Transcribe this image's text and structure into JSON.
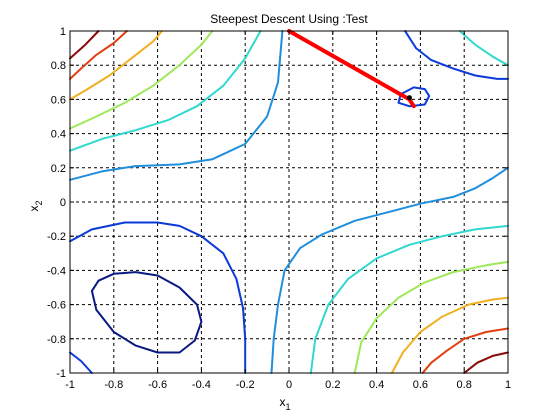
{
  "chart_data": {
    "type": "line",
    "title": "Steepest Descent Using :Test",
    "xlabel": "x",
    "xlabel_sub": "1",
    "ylabel": "x",
    "ylabel_sub": "2",
    "xlim": [
      -1,
      1
    ],
    "ylim": [
      -1,
      1
    ],
    "grid": true,
    "grid_style": "dashed",
    "x_ticks": [
      -1,
      -0.8,
      -0.6,
      -0.4,
      -0.2,
      0,
      0.2,
      0.4,
      0.6,
      0.8,
      1
    ],
    "x_tick_labels": [
      "-1",
      "-0.8",
      "-0.6",
      "-0.4",
      "-0.2",
      "0",
      "0.2",
      "0.4",
      "0.6",
      "0.8",
      "1"
    ],
    "y_ticks": [
      -1,
      -0.8,
      -0.6,
      -0.4,
      -0.2,
      0,
      0.2,
      0.4,
      0.6,
      0.8,
      1
    ],
    "y_tick_labels": [
      "-1",
      "-0.8",
      "-0.6",
      "-0.4",
      "-0.2",
      "0",
      "0.2",
      "0.4",
      "0.6",
      "0.8",
      "1"
    ],
    "contours": [
      {
        "color": "#0a1a80",
        "points": [
          [
            -0.9,
            -0.52
          ],
          [
            -0.88,
            -0.63
          ],
          [
            -0.8,
            -0.76
          ],
          [
            -0.7,
            -0.84
          ],
          [
            -0.6,
            -0.88
          ],
          [
            -0.5,
            -0.88
          ],
          [
            -0.43,
            -0.81
          ],
          [
            -0.4,
            -0.7
          ],
          [
            -0.42,
            -0.6
          ],
          [
            -0.5,
            -0.5
          ],
          [
            -0.6,
            -0.43
          ],
          [
            -0.7,
            -0.41
          ],
          [
            -0.8,
            -0.42
          ],
          [
            -0.87,
            -0.46
          ],
          [
            -0.9,
            -0.52
          ]
        ]
      },
      {
        "color": "#0a3ad8",
        "points": [
          [
            -1,
            -0.88
          ],
          [
            -0.95,
            -0.93
          ],
          [
            -0.9,
            -1
          ]
        ]
      },
      {
        "color": "#0a3ad8",
        "points": [
          [
            -1,
            -0.23
          ],
          [
            -0.9,
            -0.16
          ],
          [
            -0.75,
            -0.12
          ],
          [
            -0.6,
            -0.12
          ],
          [
            -0.5,
            -0.14
          ],
          [
            -0.4,
            -0.2
          ],
          [
            -0.3,
            -0.3
          ],
          [
            -0.24,
            -0.45
          ],
          [
            -0.21,
            -0.62
          ],
          [
            -0.2,
            -0.8
          ],
          [
            -0.2,
            -1
          ]
        ]
      },
      {
        "color": "#0a3ad8",
        "points": [
          [
            0.51,
            0.63
          ],
          [
            0.57,
            0.67
          ],
          [
            0.62,
            0.66
          ],
          [
            0.64,
            0.62
          ],
          [
            0.62,
            0.57
          ],
          [
            0.55,
            0.56
          ],
          [
            0.5,
            0.58
          ],
          [
            0.51,
            0.63
          ]
        ]
      },
      {
        "color": "#0a3ad8",
        "points": [
          [
            0.53,
            1
          ],
          [
            0.58,
            0.9
          ],
          [
            0.65,
            0.83
          ],
          [
            0.75,
            0.78
          ],
          [
            0.85,
            0.74
          ],
          [
            0.95,
            0.72
          ],
          [
            1,
            0.72
          ]
        ]
      },
      {
        "color": "#1f8fdc",
        "points": [
          [
            -1,
            0.13
          ],
          [
            -0.85,
            0.18
          ],
          [
            -0.7,
            0.21
          ],
          [
            -0.5,
            0.22
          ],
          [
            -0.35,
            0.25
          ],
          [
            -0.2,
            0.34
          ],
          [
            -0.1,
            0.5
          ],
          [
            -0.05,
            0.7
          ],
          [
            -0.03,
            1
          ]
        ]
      },
      {
        "color": "#1f8fdc",
        "points": [
          [
            -0.08,
            -1
          ],
          [
            -0.07,
            -0.8
          ],
          [
            -0.05,
            -0.6
          ],
          [
            -0.02,
            -0.4
          ],
          [
            0.05,
            -0.27
          ],
          [
            0.15,
            -0.19
          ],
          [
            0.3,
            -0.11
          ],
          [
            0.45,
            -0.06
          ],
          [
            0.6,
            -0.01
          ],
          [
            0.75,
            0.03
          ],
          [
            0.85,
            0.08
          ],
          [
            0.93,
            0.14
          ],
          [
            1,
            0.2
          ]
        ]
      },
      {
        "color": "#30d8d0",
        "points": [
          [
            -1,
            0.3
          ],
          [
            -0.85,
            0.37
          ],
          [
            -0.7,
            0.42
          ],
          [
            -0.55,
            0.48
          ],
          [
            -0.42,
            0.56
          ],
          [
            -0.3,
            0.68
          ],
          [
            -0.2,
            0.84
          ],
          [
            -0.13,
            1
          ]
        ]
      },
      {
        "color": "#30d8d0",
        "points": [
          [
            0.78,
            1
          ],
          [
            0.85,
            0.92
          ],
          [
            0.93,
            0.85
          ],
          [
            1,
            0.8
          ]
        ]
      },
      {
        "color": "#30d8d0",
        "points": [
          [
            0.1,
            -1
          ],
          [
            0.12,
            -0.8
          ],
          [
            0.18,
            -0.6
          ],
          [
            0.27,
            -0.45
          ],
          [
            0.4,
            -0.33
          ],
          [
            0.55,
            -0.25
          ],
          [
            0.7,
            -0.2
          ],
          [
            0.85,
            -0.16
          ],
          [
            1,
            -0.14
          ]
        ]
      },
      {
        "color": "#9ee85a",
        "points": [
          [
            -1,
            0.43
          ],
          [
            -0.88,
            0.5
          ],
          [
            -0.75,
            0.58
          ],
          [
            -0.62,
            0.68
          ],
          [
            -0.5,
            0.8
          ],
          [
            -0.4,
            0.92
          ],
          [
            -0.35,
            1
          ]
        ]
      },
      {
        "color": "#9ee85a",
        "points": [
          [
            0.3,
            -1
          ],
          [
            0.33,
            -0.82
          ],
          [
            0.4,
            -0.68
          ],
          [
            0.5,
            -0.56
          ],
          [
            0.62,
            -0.47
          ],
          [
            0.75,
            -0.41
          ],
          [
            0.9,
            -0.37
          ],
          [
            1,
            -0.35
          ]
        ]
      },
      {
        "color": "#f0b020",
        "points": [
          [
            -1,
            0.6
          ],
          [
            -0.92,
            0.66
          ],
          [
            -0.82,
            0.74
          ],
          [
            -0.72,
            0.84
          ],
          [
            -0.62,
            0.94
          ],
          [
            -0.58,
            1
          ]
        ]
      },
      {
        "color": "#f0b020",
        "points": [
          [
            0.47,
            -1
          ],
          [
            0.52,
            -0.88
          ],
          [
            0.6,
            -0.76
          ],
          [
            0.7,
            -0.67
          ],
          [
            0.82,
            -0.6
          ],
          [
            0.93,
            -0.57
          ],
          [
            1,
            -0.56
          ]
        ]
      },
      {
        "color": "#e04010",
        "points": [
          [
            -1,
            0.72
          ],
          [
            -0.95,
            0.78
          ],
          [
            -0.88,
            0.86
          ],
          [
            -0.8,
            0.93
          ],
          [
            -0.74,
            1
          ]
        ]
      },
      {
        "color": "#e04010",
        "points": [
          [
            0.61,
            -1
          ],
          [
            0.65,
            -0.94
          ],
          [
            0.72,
            -0.87
          ],
          [
            0.8,
            -0.8
          ],
          [
            0.9,
            -0.76
          ],
          [
            1,
            -0.74
          ]
        ]
      },
      {
        "color": "#8a0a0a",
        "points": [
          [
            -1,
            0.84
          ],
          [
            -0.93,
            0.92
          ],
          [
            -0.87,
            1
          ]
        ]
      },
      {
        "color": "#8a0a0a",
        "points": [
          [
            0.8,
            -1
          ],
          [
            0.86,
            -0.94
          ],
          [
            0.93,
            -0.9
          ],
          [
            1,
            -0.88
          ]
        ]
      }
    ],
    "descent_path": {
      "color": "#ff0000",
      "points": [
        [
          0,
          1
        ],
        [
          0.55,
          0.6
        ],
        [
          0.57,
          0.56
        ]
      ],
      "end_marker": [
        0.55,
        0.61
      ]
    }
  }
}
